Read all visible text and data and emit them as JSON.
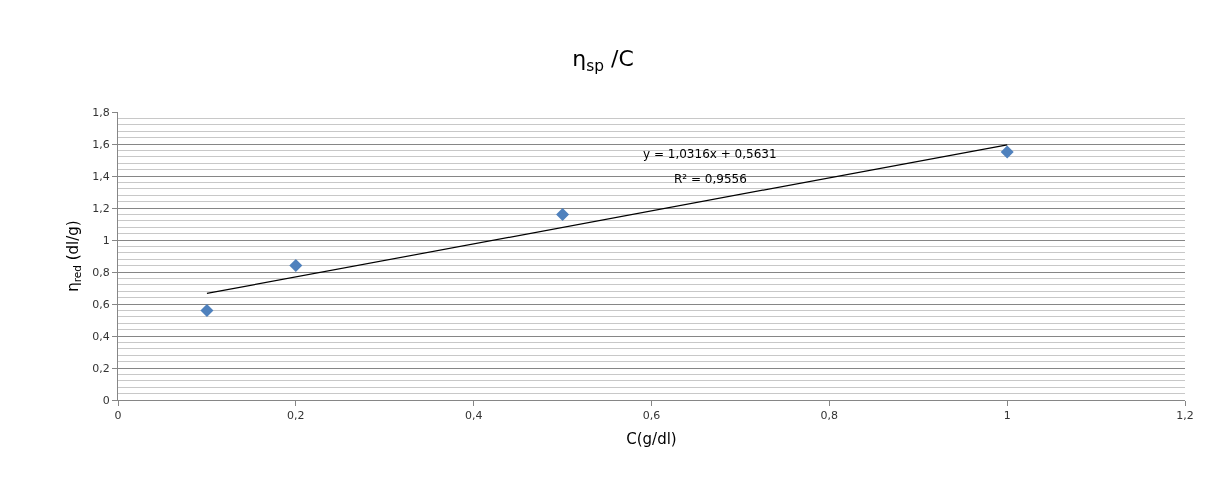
{
  "chart_data": {
    "type": "scatter",
    "title": "η$_{sp}$ /C",
    "xlabel": "C(g/dl)",
    "ylabel": "η$_{red}$ (dl/g)",
    "x": [
      0.1,
      0.2,
      0.5,
      1
    ],
    "series": [
      {
        "color": "#4f81bd",
        "marker": "diamond",
        "values": [
          0.56,
          0.84,
          1.16,
          1.55
        ]
      },
      {
        "type": "line",
        "color": "#000000",
        "marker": "none",
        "line_style": "solid",
        "x": [
          0.1,
          1
        ],
        "values": [
          0.666,
          1.595
        ]
      }
    ],
    "annotations": [
      "y = 1,0316x + 0,5631",
      "R² = 0,9556"
    ],
    "xlim": [
      0,
      1.2
    ],
    "xticks": [
      {
        "value": 0,
        "label": "0"
      },
      {
        "value": 0.2,
        "label": "0,2"
      },
      {
        "value": 0.4,
        "label": "0,4"
      },
      {
        "value": 0.6,
        "label": "0,6"
      },
      {
        "value": 0.8,
        "label": "0,8"
      },
      {
        "value": 1,
        "label": "1"
      },
      {
        "value": 1.2,
        "label": "1,2"
      }
    ],
    "ylim": [
      0,
      1.8
    ],
    "yticks": [
      {
        "value": 0,
        "label": "0"
      },
      {
        "value": 0.2,
        "label": "0,2"
      },
      {
        "value": 0.4,
        "label": "0,4"
      },
      {
        "value": 0.6,
        "label": "0,6"
      },
      {
        "value": 0.8,
        "label": "0,8"
      },
      {
        "value": 1,
        "label": "1"
      },
      {
        "value": 1.2,
        "label": "1,2"
      },
      {
        "value": 1.4,
        "label": "1,4"
      },
      {
        "value": 1.6,
        "label": "1,6"
      },
      {
        "value": 1.8,
        "label": "1,8"
      }
    ],
    "grid": "y",
    "legend": false
  }
}
